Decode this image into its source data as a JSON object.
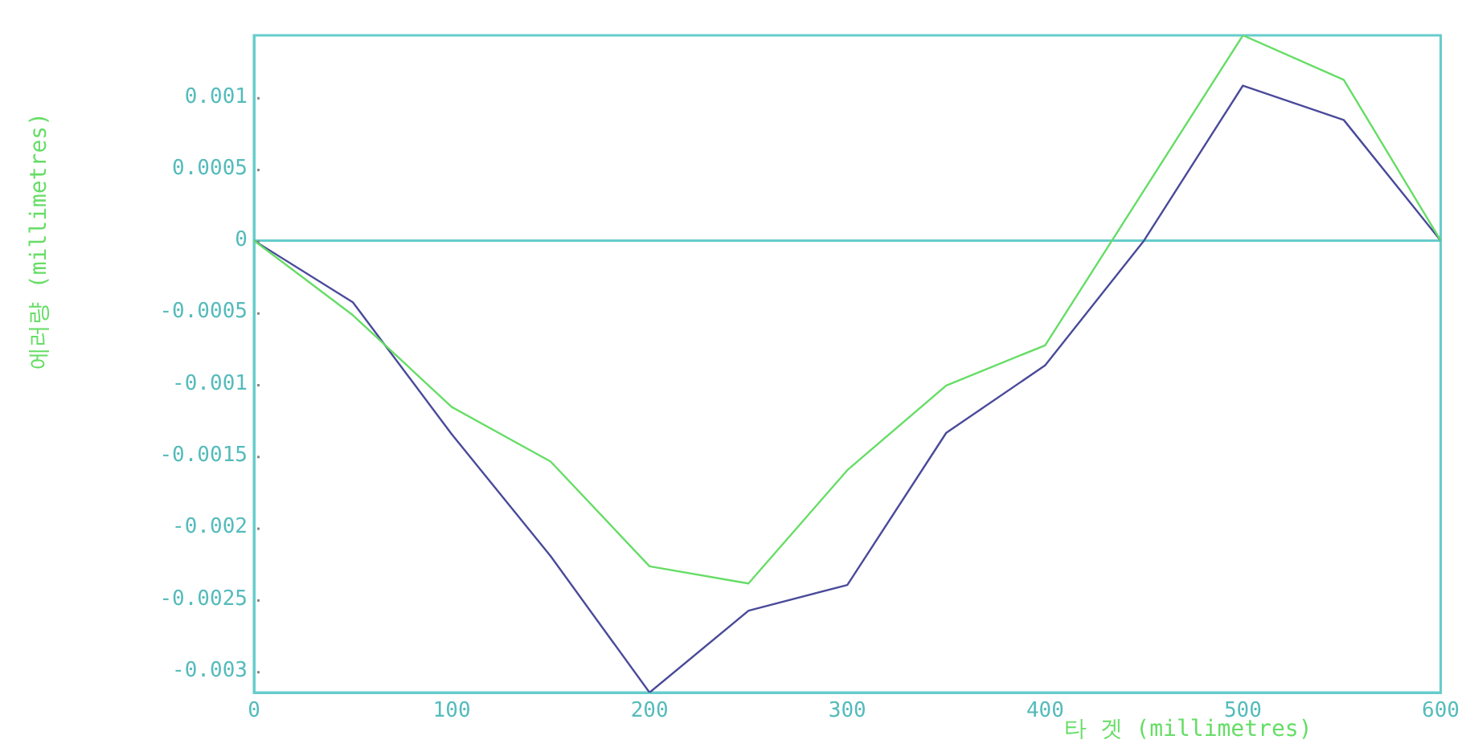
{
  "chart_data": {
    "type": "line",
    "xlabel": "타 겟 (millimetres)",
    "ylabel": "에러량 (millimetres)",
    "xlim": [
      0,
      600
    ],
    "xticks": [
      0,
      100,
      200,
      300,
      400,
      500,
      600
    ],
    "ylim": [
      -0.00315,
      0.00143
    ],
    "yticks": [
      -0.003,
      -0.0025,
      -0.002,
      -0.0015,
      -0.001,
      -0.0005,
      0,
      0.0005,
      0.001
    ],
    "grid": false,
    "legend": false,
    "marker": "none",
    "line_style": "solid",
    "ref_lines": [
      {
        "axis": "y",
        "value": 0,
        "color": "#66cccc"
      }
    ],
    "series": [
      {
        "color": "#66dd66",
        "x": [
          0,
          50,
          100,
          150,
          200,
          250,
          300,
          350,
          400,
          500,
          551,
          600
        ],
        "values": [
          0,
          -0.00052,
          -0.00116,
          -0.00154,
          -0.00227,
          -0.00239,
          -0.0016,
          -0.00101,
          -0.00073,
          0.00143,
          0.00112,
          0
        ]
      },
      {
        "color": "#4a4a9a",
        "x": [
          0,
          50,
          100,
          150,
          200,
          250,
          300,
          350,
          400,
          450,
          500,
          551,
          600
        ],
        "values": [
          0,
          -0.00043,
          -0.00135,
          -0.0022,
          -0.00315,
          -0.00258,
          -0.0024,
          -0.00134,
          -0.00087,
          0,
          0.00108,
          0.00084,
          0
        ]
      }
    ]
  }
}
